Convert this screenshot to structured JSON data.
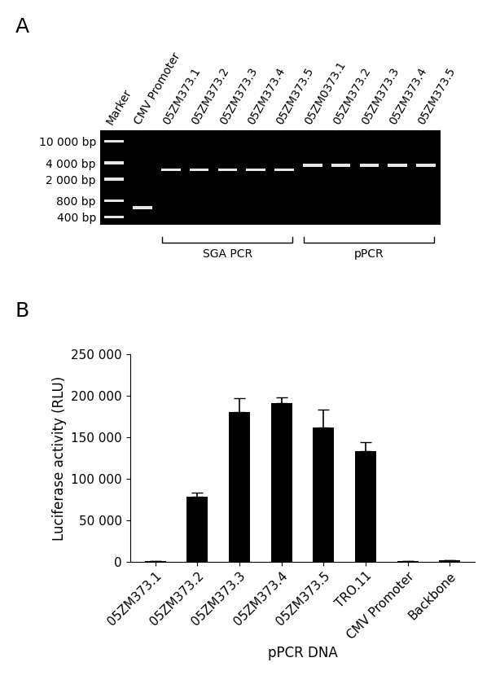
{
  "gel": {
    "panel_label": "A",
    "lanes": [
      "Marker",
      "CMV Promoter",
      "05ZM373.1",
      "05ZM373.2",
      "05ZM373.3",
      "05ZM373.4",
      "05ZM373.5",
      "05ZM0373.1",
      "05ZM373.2",
      "05ZM373.3",
      "05ZM373.4",
      "05ZM373.5"
    ],
    "bands": [
      [
        10000,
        4000,
        2000,
        800,
        400
      ],
      [
        600
      ],
      [
        3000
      ],
      [
        3000
      ],
      [
        3000
      ],
      [
        3000
      ],
      [
        3000
      ],
      [
        3600
      ],
      [
        3600
      ],
      [
        3600
      ],
      [
        3600
      ],
      [
        3600
      ]
    ],
    "color": "#e6e6e6",
    "log": "y",
    "ylim": [
      300,
      16000
    ],
    "yticks": [
      {
        "value": 10000,
        "label": "10 000 bp"
      },
      {
        "value": 4000,
        "label": "4 000 bp"
      },
      {
        "value": 2000,
        "label": "2 000 bp"
      },
      {
        "value": 800,
        "label": "800 bp"
      },
      {
        "value": 400,
        "label": "400 bp"
      }
    ],
    "groups": [
      {
        "label": "SGA PCR",
        "lanes": [
          2,
          6
        ]
      },
      {
        "label": "pPCR",
        "lanes": [
          7,
          11
        ]
      }
    ]
  },
  "chart_data": {
    "type": "bar",
    "panel_label": "B",
    "categories": [
      "05ZM373.1",
      "05ZM373.2",
      "05ZM373.3",
      "05ZM373.4",
      "05ZM373.5",
      "TRO.11",
      "CMV Promoter",
      "Backbone"
    ],
    "values": [
      1000,
      78000,
      180000,
      191000,
      162000,
      133000,
      1000,
      1500
    ],
    "errors": [
      300,
      5000,
      17000,
      7000,
      21000,
      11000,
      300,
      500
    ],
    "color": "#000000",
    "x_label": "pPCR DNA",
    "y_label": "Luciferase activity (RLU)",
    "ylim": [
      0,
      250000
    ],
    "yticks": [
      0,
      {
        "value": 50000,
        "label": "50 000"
      },
      {
        "value": 100000,
        "label": "100 000"
      },
      {
        "value": 150000,
        "label": "150 000"
      },
      {
        "value": 200000,
        "label": "200 000"
      },
      {
        "value": 250000,
        "label": "250 000"
      }
    ],
    "grid": false
  }
}
